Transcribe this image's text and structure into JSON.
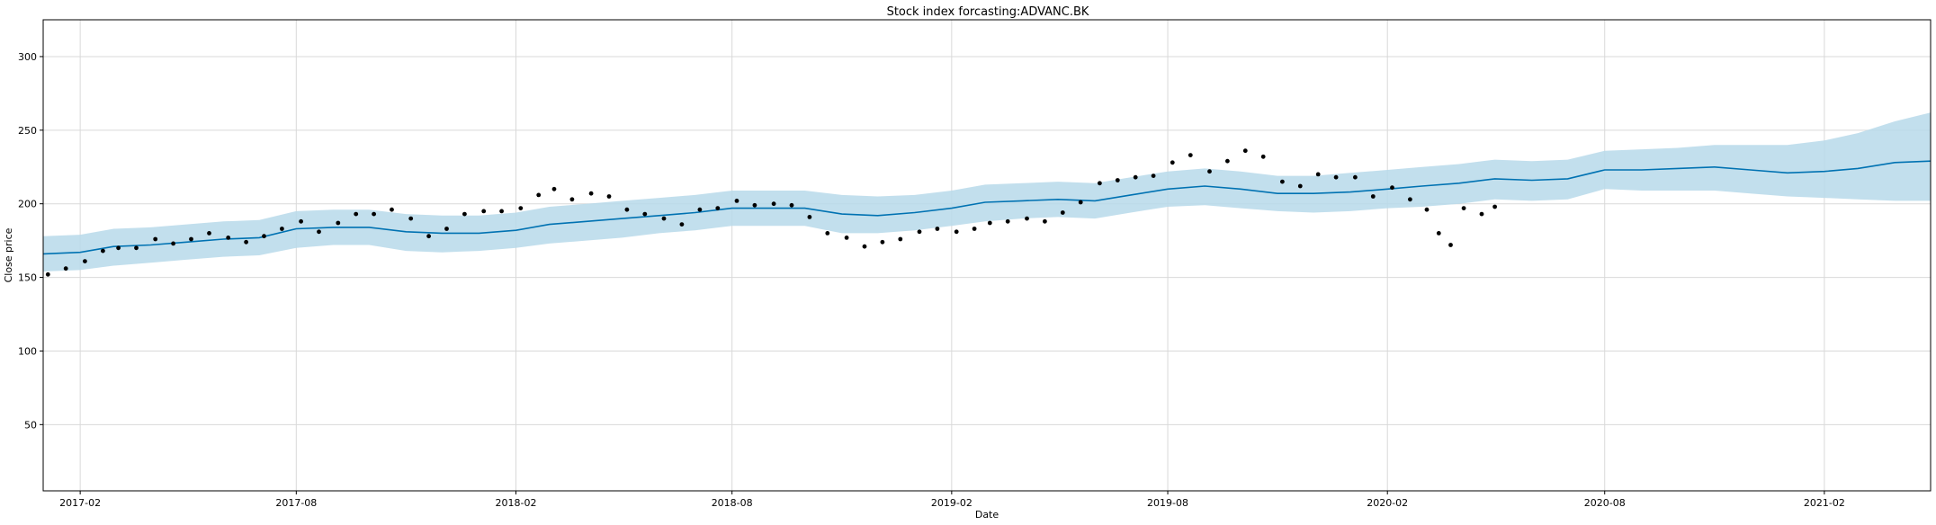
{
  "chart_data": {
    "type": "line",
    "title": "Stock index forcasting:ADVANC.BK",
    "xlabel": "Date",
    "ylabel": "Close price",
    "x_range": [
      "2017-01-01",
      "2021-05-01"
    ],
    "ylim": [
      5,
      325
    ],
    "grid": true,
    "x_ticks": [
      "2017-02",
      "2017-08",
      "2018-02",
      "2018-08",
      "2019-02",
      "2019-08",
      "2020-02",
      "2020-08",
      "2021-02"
    ],
    "y_ticks": [
      50,
      100,
      150,
      200,
      250,
      300
    ],
    "colors": {
      "forecast": "#0072B2",
      "interval": "#b7d9ea",
      "observed": "#000000"
    },
    "series": [
      {
        "kind": "forecast",
        "x": [
          "2017-01-01",
          "2017-02-01",
          "2017-03-01",
          "2017-04-01",
          "2017-05-01",
          "2017-06-01",
          "2017-07-01",
          "2017-08-01",
          "2017-09-01",
          "2017-10-01",
          "2017-11-01",
          "2017-12-01",
          "2018-01-01",
          "2018-02-01",
          "2018-03-01",
          "2018-04-01",
          "2018-05-01",
          "2018-06-01",
          "2018-07-01",
          "2018-08-01",
          "2018-09-01",
          "2018-10-01",
          "2018-11-01",
          "2018-12-01",
          "2019-01-01",
          "2019-02-01",
          "2019-03-01",
          "2019-04-01",
          "2019-05-01",
          "2019-06-01",
          "2019-07-01",
          "2019-08-01",
          "2019-09-01",
          "2019-10-01",
          "2019-11-01",
          "2019-12-01",
          "2020-01-01",
          "2020-02-01",
          "2020-03-01",
          "2020-04-01",
          "2020-05-01",
          "2020-06-01",
          "2020-07-01",
          "2020-08-01",
          "2020-09-01",
          "2020-10-01",
          "2020-11-01",
          "2020-12-01",
          "2021-01-01",
          "2021-02-01",
          "2021-03-01",
          "2021-04-01",
          "2021-05-01"
        ],
        "yhat": [
          166,
          167,
          171,
          172,
          174,
          176,
          177,
          183,
          184,
          184,
          181,
          180,
          180,
          182,
          186,
          188,
          190,
          192,
          194,
          197,
          197,
          197,
          193,
          192,
          194,
          197,
          201,
          202,
          203,
          202,
          206,
          210,
          212,
          210,
          207,
          207,
          208,
          210,
          212,
          214,
          217,
          216,
          217,
          223,
          223,
          224,
          225,
          223,
          221,
          222,
          224,
          228,
          229
        ],
        "lower": [
          154,
          155,
          158,
          160,
          162,
          164,
          165,
          170,
          172,
          172,
          168,
          167,
          168,
          170,
          173,
          175,
          177,
          180,
          182,
          185,
          185,
          185,
          180,
          180,
          182,
          185,
          188,
          190,
          191,
          190,
          194,
          198,
          199,
          197,
          195,
          194,
          195,
          197,
          198,
          200,
          203,
          202,
          203,
          210,
          209,
          209,
          209,
          207,
          205,
          204,
          203,
          202,
          202
        ],
        "upper": [
          178,
          179,
          183,
          184,
          186,
          188,
          189,
          195,
          196,
          196,
          193,
          192,
          192,
          194,
          198,
          200,
          202,
          204,
          206,
          209,
          209,
          209,
          206,
          205,
          206,
          209,
          213,
          214,
          215,
          214,
          218,
          222,
          224,
          222,
          219,
          219,
          221,
          223,
          225,
          227,
          230,
          229,
          230,
          236,
          237,
          238,
          240,
          240,
          240,
          243,
          248,
          256,
          262
        ]
      },
      {
        "kind": "observed",
        "x": [
          "2017-01-05",
          "2017-01-20",
          "2017-02-05",
          "2017-02-20",
          "2017-03-05",
          "2017-03-20",
          "2017-04-05",
          "2017-04-20",
          "2017-05-05",
          "2017-05-20",
          "2017-06-05",
          "2017-06-20",
          "2017-07-05",
          "2017-07-20",
          "2017-08-05",
          "2017-08-20",
          "2017-09-05",
          "2017-09-20",
          "2017-10-05",
          "2017-10-20",
          "2017-11-05",
          "2017-11-20",
          "2017-12-05",
          "2017-12-20",
          "2018-01-05",
          "2018-01-20",
          "2018-02-05",
          "2018-02-20",
          "2018-03-05",
          "2018-03-20",
          "2018-04-05",
          "2018-04-20",
          "2018-05-05",
          "2018-05-20",
          "2018-06-05",
          "2018-06-20",
          "2018-07-05",
          "2018-07-20",
          "2018-08-05",
          "2018-08-20",
          "2018-09-05",
          "2018-09-20",
          "2018-10-05",
          "2018-10-20",
          "2018-11-05",
          "2018-11-20",
          "2018-12-05",
          "2018-12-20",
          "2019-01-05",
          "2019-01-20",
          "2019-02-05",
          "2019-02-20",
          "2019-03-05",
          "2019-03-20",
          "2019-04-05",
          "2019-04-20",
          "2019-05-05",
          "2019-05-20",
          "2019-06-05",
          "2019-06-20",
          "2019-07-05",
          "2019-07-20",
          "2019-08-05",
          "2019-08-20",
          "2019-09-05",
          "2019-09-20",
          "2019-10-05",
          "2019-10-20",
          "2019-11-05",
          "2019-11-20",
          "2019-12-05",
          "2019-12-20",
          "2020-01-05",
          "2020-01-20",
          "2020-02-05",
          "2020-02-20",
          "2020-03-05",
          "2020-03-15",
          "2020-03-25",
          "2020-04-05",
          "2020-04-20",
          "2020-05-01"
        ],
        "y": [
          152,
          156,
          161,
          168,
          170,
          170,
          176,
          173,
          176,
          180,
          177,
          174,
          178,
          183,
          188,
          181,
          187,
          193,
          193,
          196,
          190,
          178,
          183,
          193,
          195,
          195,
          197,
          206,
          210,
          203,
          207,
          205,
          196,
          193,
          190,
          186,
          196,
          197,
          202,
          199,
          200,
          199,
          191,
          180,
          177,
          171,
          174,
          176,
          181,
          183,
          181,
          183,
          187,
          188,
          190,
          188,
          194,
          201,
          214,
          216,
          218,
          219,
          228,
          233,
          222,
          229,
          236,
          232,
          215,
          212,
          220,
          218,
          218,
          205,
          211,
          203,
          196,
          180,
          172,
          197,
          193,
          198
        ]
      }
    ]
  }
}
